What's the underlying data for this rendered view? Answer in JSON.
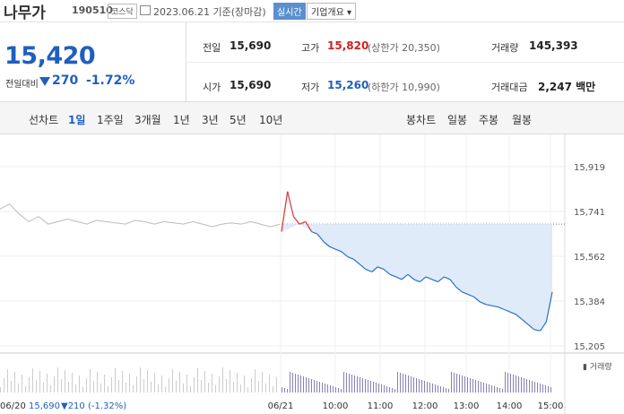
{
  "header": {
    "name": "나무가",
    "code": "190510",
    "market": "코스닥",
    "date": "2023.06.21 기준(장마감)",
    "realtime": "실시간",
    "corp_info": "기업개요 ▾"
  },
  "quote": {
    "price": "15,420",
    "change_label": "전일대비",
    "change": "270",
    "change_pct": "-1.72%"
  },
  "stats": {
    "prev_label": "전일",
    "prev": "15,690",
    "high_label": "고가",
    "high": "15,820",
    "upper_limit": "(상한가 20,350)",
    "volume_label": "거래량",
    "volume": "145,393",
    "open_label": "시가",
    "open": "15,690",
    "low_label": "저가",
    "low": "15,260",
    "lower_limit": "(하한가 10,990)",
    "amount_label": "거래대금",
    "amount": "2,247 백만"
  },
  "period": {
    "label": "선차트",
    "items": [
      "1일",
      "1주일",
      "3개월",
      "1년",
      "3년",
      "5년",
      "10년"
    ],
    "selected": 0,
    "candle_label": "봉차트",
    "candles": [
      "일봉",
      "주봉",
      "월봉"
    ]
  },
  "chart_data": {
    "type": "line",
    "y_ticks": [
      "15,919",
      "15,741",
      "15,562",
      "15,384",
      "15,205"
    ],
    "x_ticks": [
      "06/21",
      "10:00",
      "11:00",
      "12:00",
      "13:00",
      "14:00",
      "15:00"
    ],
    "ylim": [
      15205,
      15919
    ],
    "prev_close": 15690,
    "volume_label": "거래량",
    "footer": {
      "date": "06/20",
      "price": "15,690",
      "change": "▼210 (-1.32%)"
    },
    "prev_day_series": [
      15750,
      15770,
      15730,
      15700,
      15720,
      15690,
      15700,
      15710,
      15700,
      15690,
      15705,
      15700,
      15695,
      15690,
      15705,
      15700,
      15690,
      15700,
      15695,
      15690,
      15700,
      15690,
      15680,
      15690,
      15695,
      15690,
      15700,
      15690,
      15680,
      15690
    ],
    "today_series": [
      15660,
      15820,
      15720,
      15690,
      15700,
      15660,
      15650,
      15620,
      15600,
      15590,
      15580,
      15560,
      15550,
      15530,
      15510,
      15500,
      15520,
      15510,
      15490,
      15480,
      15470,
      15490,
      15470,
      15460,
      15480,
      15470,
      15460,
      15480,
      15470,
      15440,
      15420,
      15410,
      15400,
      15380,
      15370,
      15365,
      15360,
      15350,
      15340,
      15330,
      15310,
      15290,
      15270,
      15265,
      15300,
      15420
    ]
  }
}
